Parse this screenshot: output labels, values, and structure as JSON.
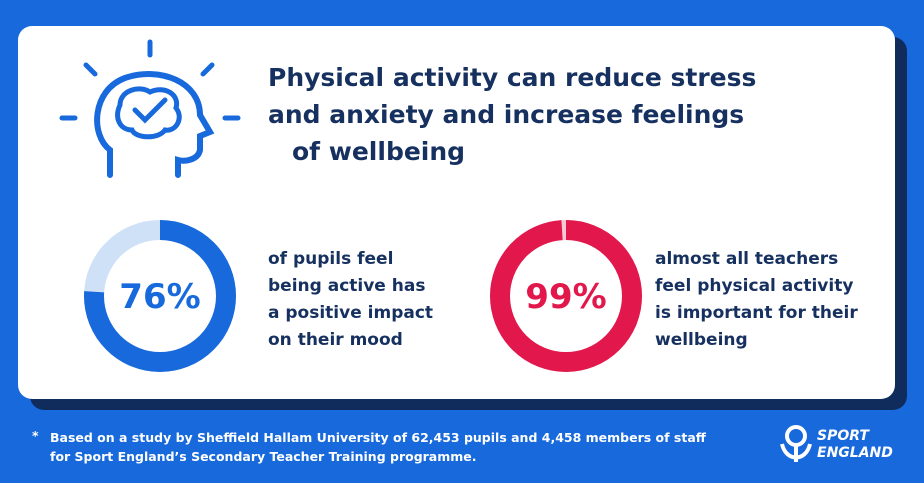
{
  "title": [
    "Physical activity can reduce stress",
    "and anxiety and increase feelings",
    "of wellbeing"
  ],
  "stats": [
    {
      "value": 76,
      "value_label": "76%",
      "color": "#1769dc",
      "track_color": "#cfe1f6",
      "text": [
        "of pupils feel",
        "being active has",
        "a positive impact",
        "on their mood"
      ]
    },
    {
      "value": 99,
      "value_label": "99%",
      "color": "#e2184c",
      "track_color": "#f7c9d5",
      "text": [
        "almost all teachers",
        "feel physical activity",
        "is important for their",
        "wellbeing"
      ]
    }
  ],
  "footnote": {
    "marker": "*",
    "lines": [
      "Based on a study by Sheffield Hallam University of 62,453 pupils and 4,458 members of staff",
      "for Sport England’s Secondary Teacher Training programme."
    ]
  },
  "logo": [
    "SPORT",
    "ENGLAND"
  ]
}
